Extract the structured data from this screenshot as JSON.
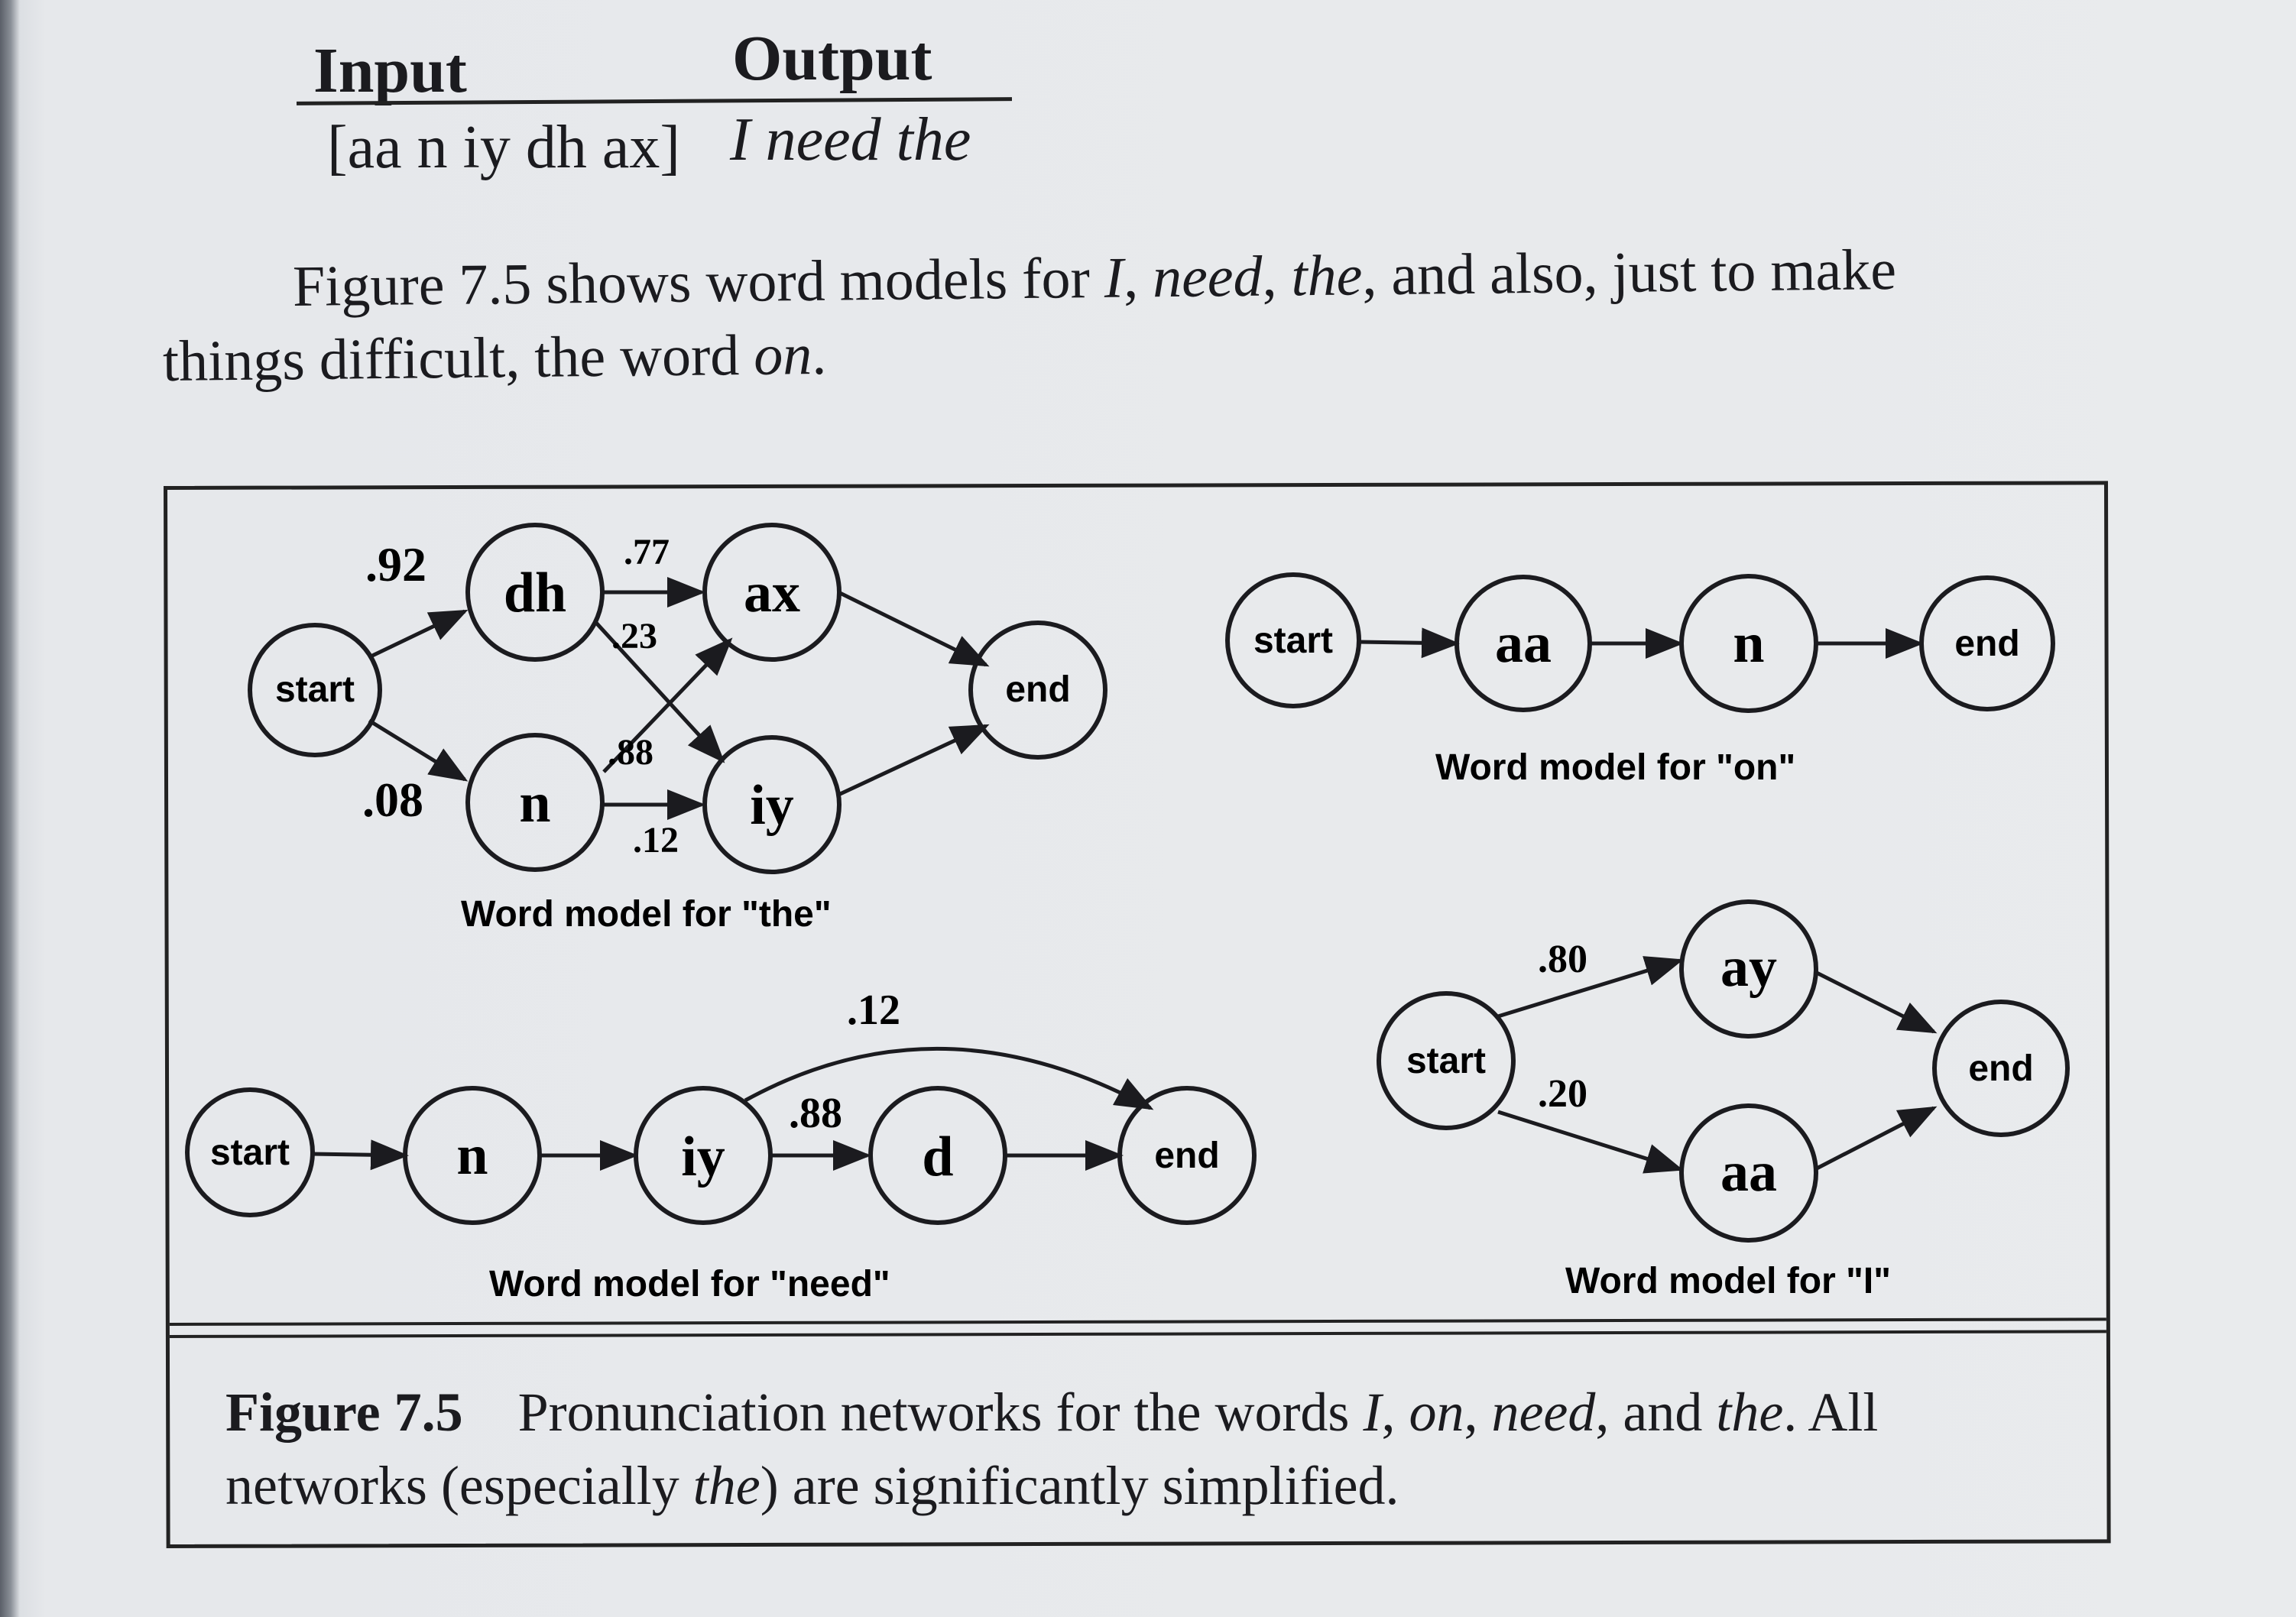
{
  "table": {
    "input_header": "Input",
    "output_header": "Output",
    "input_value": "[aa n iy dh ax]",
    "output_value": "I need the"
  },
  "paragraph": {
    "line1_a": "Figure 7.5 shows word models for ",
    "line1_i1": "I",
    "line1_b": ", ",
    "line1_i2": "need",
    "line1_c": ", ",
    "line1_i3": "the",
    "line1_d": ", and also, just to make",
    "line2_a": "things difficult, the word ",
    "line2_i": "on",
    "line2_b": "."
  },
  "models": {
    "the": {
      "caption": "Word model for \"the\"",
      "nodes": [
        "start",
        "dh",
        "n",
        "ax",
        "iy",
        "end"
      ],
      "p_start_dh": ".92",
      "p_start_n": ".08",
      "p_dh_ax": ".77",
      "p_dh_iy": ".23",
      "p_n_ax": ".88",
      "p_n_iy": ".12"
    },
    "on": {
      "caption": "Word model for \"on\"",
      "nodes": [
        "start",
        "aa",
        "n",
        "end"
      ]
    },
    "need": {
      "caption": "Word model for \"need\"",
      "nodes": [
        "start",
        "n",
        "iy",
        "d",
        "end"
      ],
      "p_iy_end": ".12",
      "p_iy_d": ".88"
    },
    "i": {
      "caption": "Word model for \"I\"",
      "nodes": [
        "start",
        "ay",
        "aa",
        "end"
      ],
      "p_start_ay": ".80",
      "p_start_aa": ".20"
    }
  },
  "figure_caption": {
    "label": "Figure 7.5",
    "text_a": "Pronunciation networks for the words ",
    "i1": "I",
    "text_b": ", ",
    "i2": "on",
    "text_c": ", ",
    "i3": "need",
    "text_d": ", and ",
    "i4": "the",
    "text_e": ". All networks (especially ",
    "i5": "the",
    "text_f": ") are significantly simplified."
  }
}
